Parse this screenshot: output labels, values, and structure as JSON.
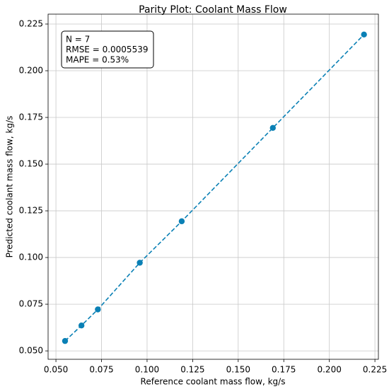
{
  "chart_data": {
    "type": "line",
    "title": "Parity Plot: Coolant Mass Flow",
    "x_label": "Reference coolant mass flow, kg/s",
    "y_label": "Predicted coolant mass flow, kg/s",
    "annotations": [
      "N = 7",
      "RMSE = 0.0005539",
      "MAPE = 0.53%"
    ],
    "x": [
      0.055,
      0.064,
      0.073,
      0.096,
      0.119,
      0.169,
      0.219
    ],
    "series": [
      {
        "color": "#0a80b5",
        "values": [
          0.0553,
          0.0636,
          0.0722,
          0.0972,
          0.1194,
          0.1694,
          0.2194
        ]
      }
    ],
    "xlim": [
      0.0457,
      0.2269
    ],
    "ylim": [
      0.0455,
      0.2303
    ],
    "xticks": [
      {
        "value": 0.05,
        "label": "0.050"
      },
      {
        "value": 0.075,
        "label": "0.075"
      },
      {
        "value": 0.1,
        "label": "0.100"
      },
      {
        "value": 0.125,
        "label": "0.125"
      },
      {
        "value": 0.15,
        "label": "0.150"
      },
      {
        "value": 0.175,
        "label": "0.175"
      },
      {
        "value": 0.2,
        "label": "0.200"
      },
      {
        "value": 0.225,
        "label": "0.225"
      }
    ],
    "yticks": [
      {
        "value": 0.05,
        "label": "0.050"
      },
      {
        "value": 0.075,
        "label": "0.075"
      },
      {
        "value": 0.1,
        "label": "0.100"
      },
      {
        "value": 0.125,
        "label": "0.125"
      },
      {
        "value": 0.15,
        "label": "0.150"
      },
      {
        "value": 0.175,
        "label": "0.175"
      },
      {
        "value": 0.2,
        "label": "0.200"
      },
      {
        "value": 0.225,
        "label": "0.225"
      }
    ],
    "grid": true
  }
}
